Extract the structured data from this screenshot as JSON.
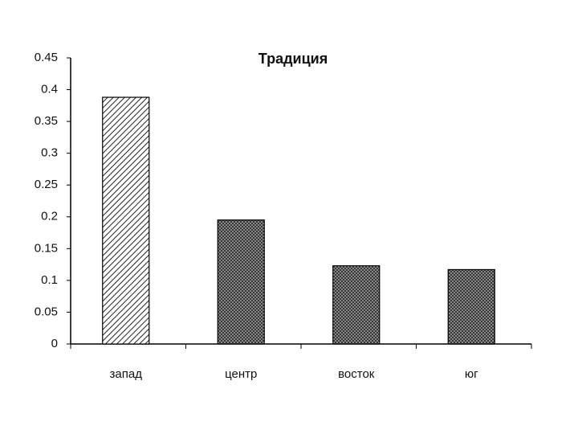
{
  "chart_data": {
    "type": "bar",
    "title": "Традиция",
    "categories": [
      "запад",
      "центр",
      "восток",
      "юг"
    ],
    "values": [
      0.388,
      0.195,
      0.123,
      0.117
    ],
    "patterns": [
      "hatch",
      "crosshatch",
      "crosshatch",
      "crosshatch"
    ],
    "ylim": [
      0,
      0.45
    ],
    "yticks": [
      0,
      0.05,
      0.1,
      0.15,
      0.2,
      0.25,
      0.3,
      0.35,
      0.4,
      0.45
    ]
  }
}
